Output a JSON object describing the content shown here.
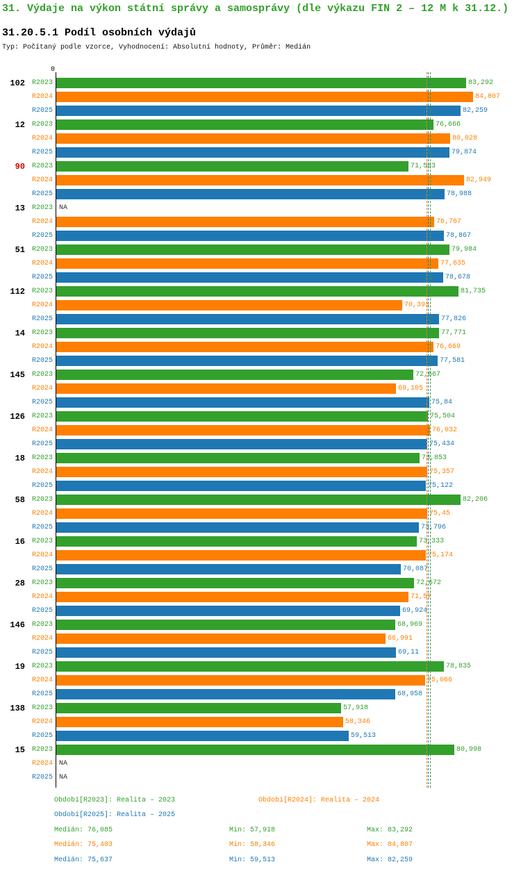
{
  "header": {
    "title": "31. Výdaje na výkon státní správy a samosprávy (dle výkazu FIN 2 – 12 M k 31.12.)",
    "subtitle": "31.20.5.1 Podíl osobních výdajů",
    "meta": "Typ: Počítaný podle vzorce, Vyhodnocení: Absolutní hodnoty, Průměr: Medián"
  },
  "colors": {
    "title_green": "#33A02C",
    "highlight_red": "#CC0000",
    "axis_black": "#000000",
    "na_text": "#333333"
  },
  "chart_data": {
    "type": "bar",
    "orientation": "horizontal",
    "title": "31.20.5.1 Podíl osobních výdajů",
    "origin_label": "0",
    "xlim": [
      0,
      93
    ],
    "series_keys": [
      "R2023",
      "R2024",
      "R2025"
    ],
    "series_colors": {
      "R2023": "#33A02C",
      "R2024": "#FF7F00",
      "R2025": "#1F78B4"
    },
    "na_display": "NA",
    "median_lines": [
      {
        "series": "R2023",
        "value": 76.085
      },
      {
        "series": "R2024",
        "value": 75.403
      },
      {
        "series": "R2025",
        "value": 75.637
      }
    ],
    "groups": [
      {
        "label": "102",
        "highlight": false,
        "bars": [
          {
            "series": "R2023",
            "value": 83.292,
            "display": "83,292"
          },
          {
            "series": "R2024",
            "value": 84.807,
            "display": "84,807"
          },
          {
            "series": "R2025",
            "value": 82.259,
            "display": "82,259"
          }
        ]
      },
      {
        "label": "12",
        "highlight": false,
        "bars": [
          {
            "series": "R2023",
            "value": 76.666,
            "display": "76,666"
          },
          {
            "series": "R2024",
            "value": 80.028,
            "display": "80,028"
          },
          {
            "series": "R2025",
            "value": 79.874,
            "display": "79,874"
          }
        ]
      },
      {
        "label": "90",
        "highlight": true,
        "bars": [
          {
            "series": "R2023",
            "value": 71.583,
            "display": "71,583"
          },
          {
            "series": "R2024",
            "value": 82.949,
            "display": "82,949"
          },
          {
            "series": "R2025",
            "value": 78.988,
            "display": "78,988"
          }
        ]
      },
      {
        "label": "13",
        "highlight": false,
        "bars": [
          {
            "series": "R2023",
            "value": null,
            "display": "NA"
          },
          {
            "series": "R2024",
            "value": 76.767,
            "display": "76,767"
          },
          {
            "series": "R2025",
            "value": 78.867,
            "display": "78,867"
          }
        ]
      },
      {
        "label": "51",
        "highlight": false,
        "bars": [
          {
            "series": "R2023",
            "value": 79.984,
            "display": "79,984"
          },
          {
            "series": "R2024",
            "value": 77.635,
            "display": "77,635"
          },
          {
            "series": "R2025",
            "value": 78.678,
            "display": "78,678"
          }
        ]
      },
      {
        "label": "112",
        "highlight": false,
        "bars": [
          {
            "series": "R2023",
            "value": 81.735,
            "display": "81,735"
          },
          {
            "series": "R2024",
            "value": 70.393,
            "display": "70,393"
          },
          {
            "series": "R2025",
            "value": 77.826,
            "display": "77,826"
          }
        ]
      },
      {
        "label": "14",
        "highlight": false,
        "bars": [
          {
            "series": "R2023",
            "value": 77.771,
            "display": "77,771"
          },
          {
            "series": "R2024",
            "value": 76.669,
            "display": "76,669"
          },
          {
            "series": "R2025",
            "value": 77.581,
            "display": "77,581"
          }
        ]
      },
      {
        "label": "145",
        "highlight": false,
        "bars": [
          {
            "series": "R2023",
            "value": 72.667,
            "display": "72,667"
          },
          {
            "series": "R2024",
            "value": 69.105,
            "display": "69,105"
          },
          {
            "series": "R2025",
            "value": 75.84,
            "display": "75,84"
          }
        ]
      },
      {
        "label": "126",
        "highlight": false,
        "bars": [
          {
            "series": "R2023",
            "value": 75.504,
            "display": "75,504"
          },
          {
            "series": "R2024",
            "value": 76.032,
            "display": "76,032"
          },
          {
            "series": "R2025",
            "value": 75.434,
            "display": "75,434"
          }
        ]
      },
      {
        "label": "18",
        "highlight": false,
        "bars": [
          {
            "series": "R2023",
            "value": 73.853,
            "display": "73,853"
          },
          {
            "series": "R2024",
            "value": 75.357,
            "display": "75,357"
          },
          {
            "series": "R2025",
            "value": 75.122,
            "display": "75,122"
          }
        ]
      },
      {
        "label": "58",
        "highlight": false,
        "bars": [
          {
            "series": "R2023",
            "value": 82.206,
            "display": "82,206"
          },
          {
            "series": "R2024",
            "value": 75.45,
            "display": "75,45"
          },
          {
            "series": "R2025",
            "value": 73.796,
            "display": "73,796"
          }
        ]
      },
      {
        "label": "16",
        "highlight": false,
        "bars": [
          {
            "series": "R2023",
            "value": 73.333,
            "display": "73,333"
          },
          {
            "series": "R2024",
            "value": 75.174,
            "display": "75,174"
          },
          {
            "series": "R2025",
            "value": 70.087,
            "display": "70,087"
          }
        ]
      },
      {
        "label": "28",
        "highlight": false,
        "bars": [
          {
            "series": "R2023",
            "value": 72.672,
            "display": "72,672"
          },
          {
            "series": "R2024",
            "value": 71.57,
            "display": "71,57"
          },
          {
            "series": "R2025",
            "value": 69.924,
            "display": "69,924"
          }
        ]
      },
      {
        "label": "146",
        "highlight": false,
        "bars": [
          {
            "series": "R2023",
            "value": 68.969,
            "display": "68,969"
          },
          {
            "series": "R2024",
            "value": 66.991,
            "display": "66,991"
          },
          {
            "series": "R2025",
            "value": 69.11,
            "display": "69,11"
          }
        ]
      },
      {
        "label": "19",
        "highlight": false,
        "bars": [
          {
            "series": "R2023",
            "value": 78.835,
            "display": "78,835"
          },
          {
            "series": "R2024",
            "value": 75.066,
            "display": "75,066"
          },
          {
            "series": "R2025",
            "value": 68.958,
            "display": "68,958"
          }
        ]
      },
      {
        "label": "138",
        "highlight": false,
        "bars": [
          {
            "series": "R2023",
            "value": 57.918,
            "display": "57,918"
          },
          {
            "series": "R2024",
            "value": 58.346,
            "display": "58,346"
          },
          {
            "series": "R2025",
            "value": 59.513,
            "display": "59,513"
          }
        ]
      },
      {
        "label": "15",
        "highlight": false,
        "bars": [
          {
            "series": "R2023",
            "value": 80.998,
            "display": "80,998"
          },
          {
            "series": "R2024",
            "value": null,
            "display": "NA"
          },
          {
            "series": "R2025",
            "value": null,
            "display": "NA"
          }
        ]
      }
    ]
  },
  "footer": {
    "legend": [
      {
        "series": "R2023",
        "label": "Období[R2023]: Realita – 2023"
      },
      {
        "series": "R2024",
        "label": "Období[R2024]: Realita – 2024"
      },
      {
        "series": "R2025",
        "label": "Období[R2025]: Realita – 2025"
      }
    ],
    "stats": [
      {
        "series": "R2023",
        "median": "Medián: 76,085",
        "min": "Min: 57,918",
        "max": "Max: 83,292"
      },
      {
        "series": "R2024",
        "median": "Medián: 75,403",
        "min": "Min: 58,346",
        "max": "Max: 84,807"
      },
      {
        "series": "R2025",
        "median": "Medián: 75,637",
        "min": "Min: 59,513",
        "max": "Max: 82,259"
      }
    ]
  }
}
